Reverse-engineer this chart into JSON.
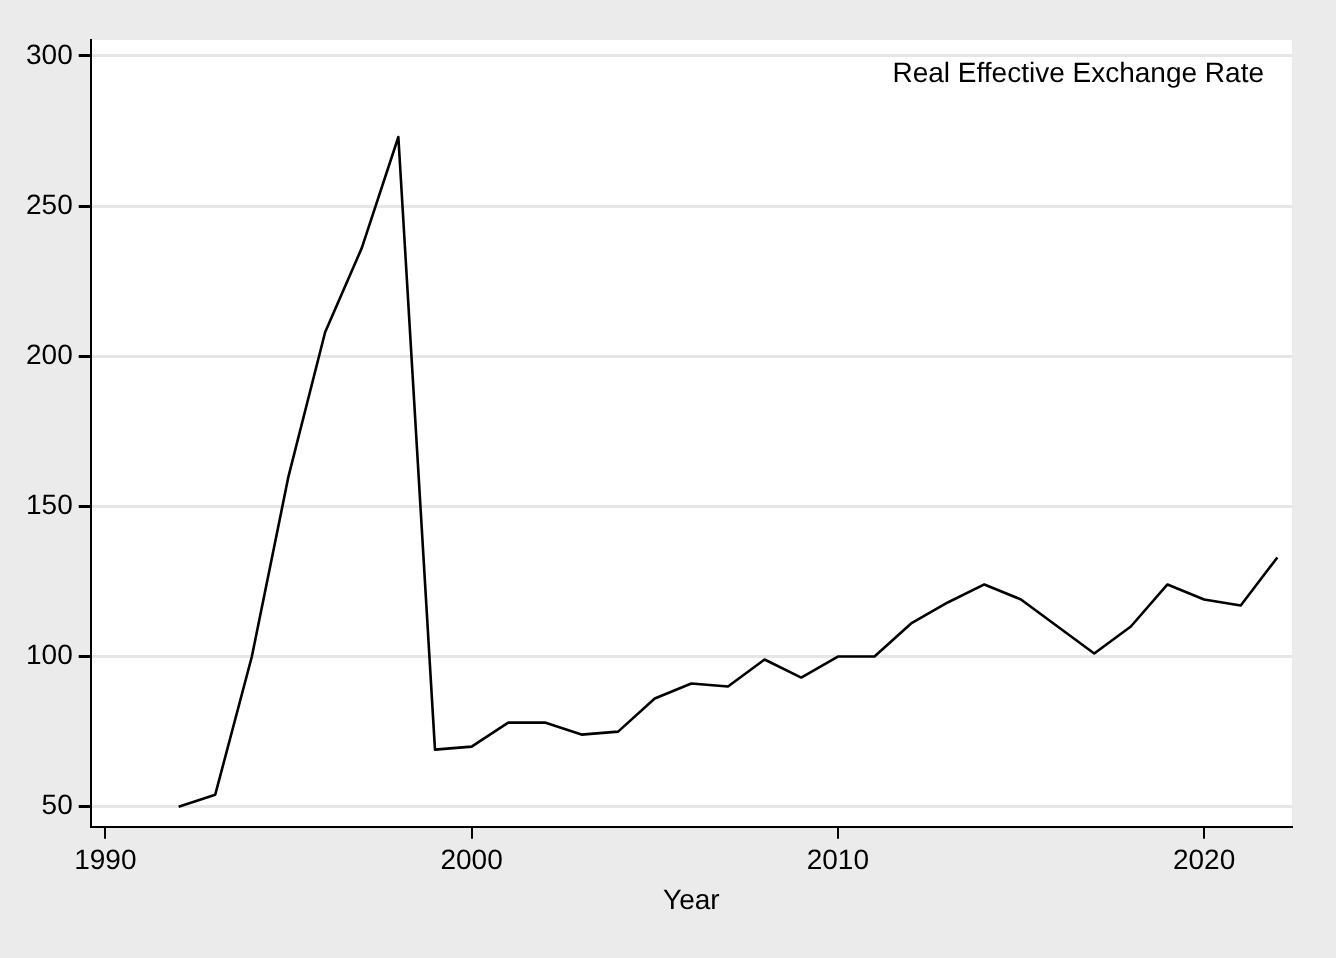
{
  "chart_data": {
    "type": "line",
    "title": "Real Effective Exchange Rate",
    "xlabel": "Year",
    "x": [
      1992,
      1993,
      1994,
      1995,
      1996,
      1997,
      1998,
      1999,
      2000,
      2001,
      2002,
      2003,
      2004,
      2005,
      2006,
      2007,
      2008,
      2009,
      2010,
      2011,
      2012,
      2013,
      2014,
      2015,
      2016,
      2017,
      2018,
      2019,
      2020,
      2021,
      2022
    ],
    "series": [
      {
        "color": "#000000",
        "values": [
          50,
          54,
          100,
          160,
          208,
          236,
          273,
          69,
          70,
          78,
          78,
          74,
          75,
          86,
          91,
          90,
          99,
          93,
          100,
          100,
          111,
          118,
          124,
          119,
          110,
          101,
          110,
          124,
          119,
          117,
          133
        ]
      }
    ],
    "xlim": [
      1989.6,
      2022.4
    ],
    "ylim": [
      43.3,
      305.3
    ],
    "xticks": [
      1990,
      2000,
      2010,
      2020
    ],
    "yticks": [
      50,
      100,
      150,
      200,
      250,
      300
    ],
    "grid": "y",
    "legend": false,
    "marker": "none",
    "line_style": "solid"
  }
}
